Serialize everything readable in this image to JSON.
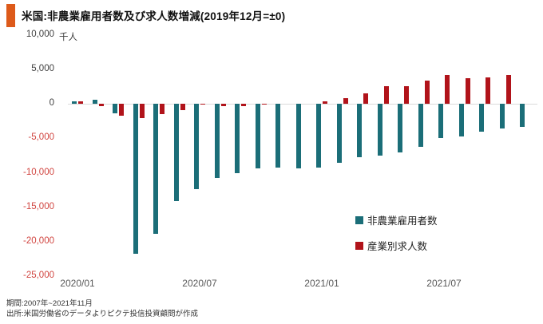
{
  "title": "米国:非農業雇用者数及び求人数増減(2019年12月=±0)",
  "unit_label": "千人",
  "legend": {
    "items": [
      {
        "label": "非農業雇用者数",
        "color": "#1B6E78"
      },
      {
        "label": "産業別求人数",
        "color": "#B1131A"
      }
    ]
  },
  "footer": {
    "period": "期間:2007年~2021年11月",
    "source": "出所:米国労働省のデータよりピクテ投信投資顧問が作成"
  },
  "colors": {
    "accent_orange": "#DD5A1A",
    "payrolls_teal": "#1B6E78",
    "openings_red": "#B1131A",
    "negative_tick_red": "#D14540",
    "tick_gray": "#595959",
    "zero_line_gray": "#DBDBDB"
  },
  "chart_data": {
    "type": "bar",
    "title": "米国:非農業雇用者数及び求人数増減(2019年12月=±0)",
    "ylabel": "千人",
    "ylim": [
      -25000,
      10000
    ],
    "yticks": [
      10000,
      5000,
      0,
      -5000,
      -10000,
      -15000,
      -20000,
      -25000
    ],
    "grid": false,
    "legend_position": "inside-right",
    "xtick_labels": [
      "2020/01",
      "2020/07",
      "2021/01",
      "2021/07"
    ],
    "xtick_month_index": [
      0,
      6,
      12,
      18
    ],
    "categories": [
      "2020/01",
      "2020/02",
      "2020/03",
      "2020/04",
      "2020/05",
      "2020/06",
      "2020/07",
      "2020/08",
      "2020/09",
      "2020/10",
      "2020/11",
      "2020/12",
      "2021/01",
      "2021/02",
      "2021/03",
      "2021/04",
      "2021/05",
      "2021/06",
      "2021/07",
      "2021/08",
      "2021/09",
      "2021/10",
      "2021/11"
    ],
    "series": [
      {
        "name": "非農業雇用者数",
        "color": "#1B6E78",
        "values": [
          300,
          600,
          -1400,
          -21700,
          -18800,
          -14100,
          -12400,
          -10800,
          -10000,
          -9400,
          -9200,
          -9400,
          -9200,
          -8600,
          -7800,
          -7500,
          -7000,
          -6200,
          -5000,
          -4700,
          -4000,
          -3600,
          -3400
        ]
      },
      {
        "name": "産業別求人数",
        "color": "#B1131A",
        "values": [
          300,
          -300,
          -1700,
          -2100,
          -1500,
          -900,
          -100,
          -300,
          -300,
          -100,
          0,
          0,
          300,
          800,
          1500,
          2500,
          2600,
          3300,
          4200,
          3700,
          3800,
          4200,
          null
        ]
      }
    ]
  }
}
